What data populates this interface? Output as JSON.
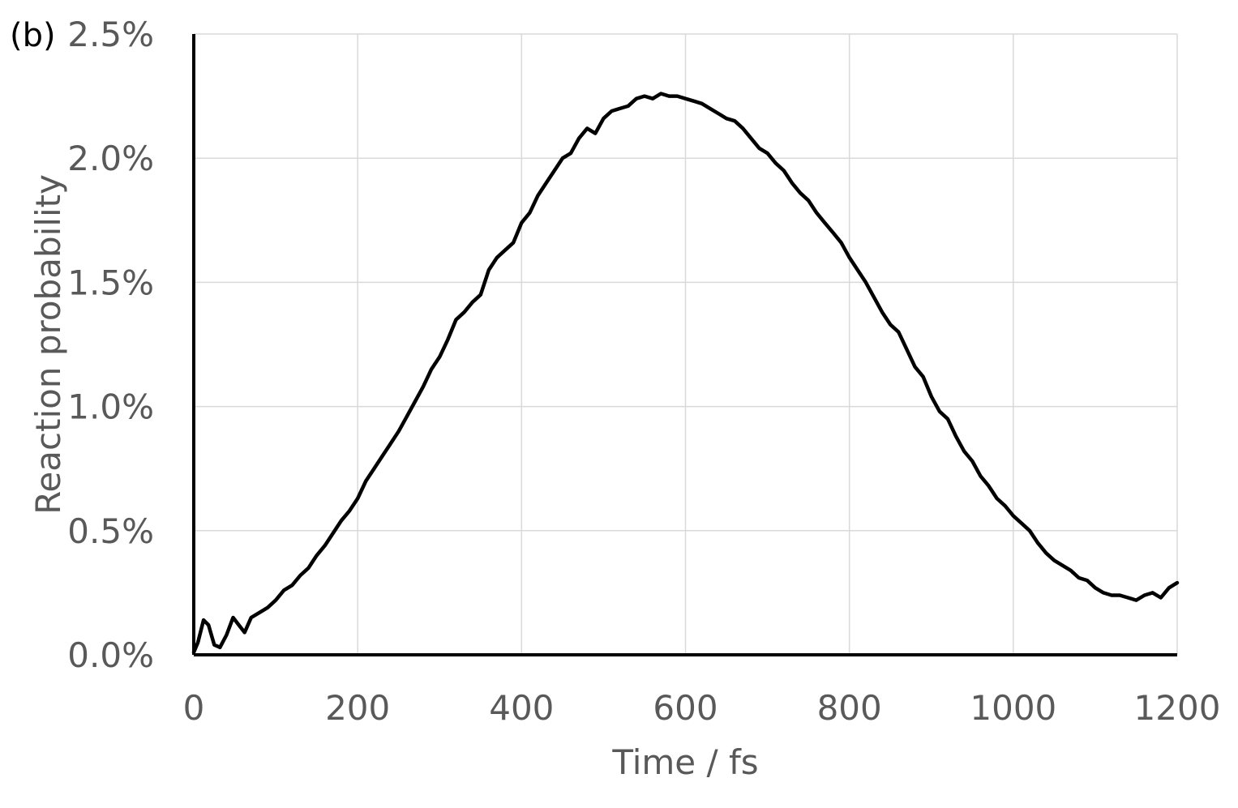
{
  "panel_label": "(b)",
  "chart_data": {
    "type": "line",
    "xlabel": "Time / fs",
    "ylabel": "Reaction probability",
    "xlim": [
      0,
      1200
    ],
    "ylim": [
      0,
      2.5
    ],
    "x_ticks": [
      0,
      200,
      400,
      600,
      800,
      1000,
      1200
    ],
    "x_tick_labels": [
      "0",
      "200",
      "400",
      "600",
      "800",
      "1000",
      "1200"
    ],
    "y_ticks": [
      0,
      0.5,
      1.0,
      1.5,
      2.0,
      2.5
    ],
    "y_tick_labels": [
      "0.0%",
      "0.5%",
      "1.0%",
      "1.5%",
      "2.0%",
      "2.5%"
    ],
    "grid": true,
    "line_color": "#000000",
    "grid_color": "#d9d9d9",
    "series": [
      {
        "x": [
          0,
          5,
          12,
          18,
          25,
          32,
          40,
          48,
          55,
          62,
          70,
          80,
          90,
          100,
          110,
          120,
          130,
          140,
          150,
          160,
          170,
          180,
          190,
          200,
          210,
          220,
          230,
          240,
          250,
          260,
          270,
          280,
          290,
          300,
          310,
          320,
          330,
          340,
          350,
          360,
          370,
          380,
          390,
          400,
          410,
          420,
          430,
          440,
          450,
          460,
          470,
          480,
          490,
          500,
          510,
          520,
          530,
          540,
          550,
          560,
          570,
          580,
          590,
          600,
          610,
          620,
          630,
          640,
          650,
          660,
          670,
          680,
          690,
          700,
          710,
          720,
          730,
          740,
          750,
          760,
          770,
          780,
          790,
          800,
          810,
          820,
          830,
          840,
          850,
          860,
          870,
          880,
          890,
          900,
          910,
          920,
          930,
          940,
          950,
          960,
          970,
          980,
          990,
          1000,
          1010,
          1020,
          1030,
          1040,
          1050,
          1060,
          1070,
          1080,
          1090,
          1100,
          1110,
          1120,
          1130,
          1140,
          1150,
          1160,
          1170,
          1180,
          1190,
          1200
        ],
        "y": [
          0.01,
          0.05,
          0.14,
          0.12,
          0.04,
          0.03,
          0.08,
          0.15,
          0.12,
          0.09,
          0.15,
          0.17,
          0.19,
          0.22,
          0.26,
          0.28,
          0.32,
          0.35,
          0.4,
          0.44,
          0.49,
          0.54,
          0.58,
          0.63,
          0.7,
          0.75,
          0.8,
          0.85,
          0.9,
          0.96,
          1.02,
          1.08,
          1.15,
          1.2,
          1.27,
          1.35,
          1.38,
          1.42,
          1.45,
          1.55,
          1.6,
          1.63,
          1.66,
          1.74,
          1.78,
          1.85,
          1.9,
          1.95,
          2.0,
          2.02,
          2.08,
          2.12,
          2.1,
          2.16,
          2.19,
          2.2,
          2.21,
          2.24,
          2.25,
          2.24,
          2.26,
          2.25,
          2.25,
          2.24,
          2.23,
          2.22,
          2.2,
          2.18,
          2.16,
          2.15,
          2.12,
          2.08,
          2.04,
          2.02,
          1.98,
          1.95,
          1.9,
          1.86,
          1.83,
          1.78,
          1.74,
          1.7,
          1.66,
          1.6,
          1.55,
          1.5,
          1.44,
          1.38,
          1.33,
          1.3,
          1.23,
          1.16,
          1.12,
          1.04,
          0.98,
          0.95,
          0.88,
          0.82,
          0.78,
          0.72,
          0.68,
          0.63,
          0.6,
          0.56,
          0.53,
          0.5,
          0.45,
          0.41,
          0.38,
          0.36,
          0.34,
          0.31,
          0.3,
          0.27,
          0.25,
          0.24,
          0.24,
          0.23,
          0.22,
          0.24,
          0.25,
          0.23,
          0.27,
          0.29
        ]
      }
    ]
  }
}
